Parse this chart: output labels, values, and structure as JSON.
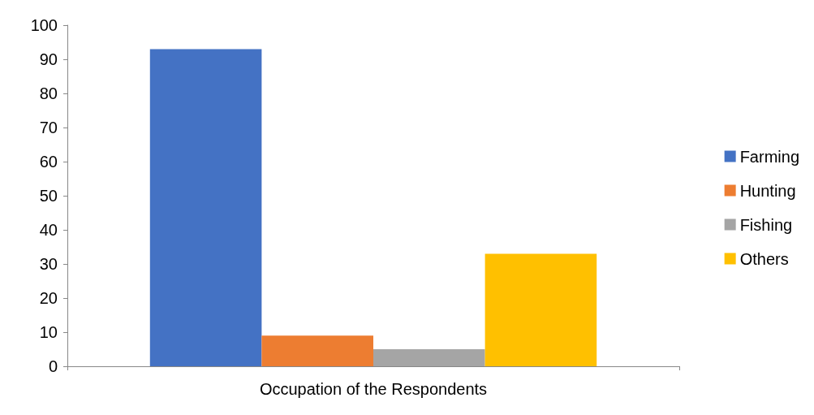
{
  "chart_data": {
    "type": "bar",
    "categories": [
      "Occupation of the Respondents"
    ],
    "series": [
      {
        "name": "Farming",
        "color": "#4472c4",
        "values": [
          93
        ]
      },
      {
        "name": "Hunting",
        "color": "#ed7d31",
        "values": [
          9
        ]
      },
      {
        "name": "Fishing",
        "color": "#a5a5a5",
        "values": [
          5
        ]
      },
      {
        "name": "Others",
        "color": "#ffc000",
        "values": [
          33
        ]
      }
    ],
    "ylim": [
      0,
      100
    ],
    "yticks": [
      0,
      10,
      20,
      30,
      40,
      50,
      60,
      70,
      80,
      90,
      100
    ],
    "grid": false,
    "legend": "right"
  }
}
